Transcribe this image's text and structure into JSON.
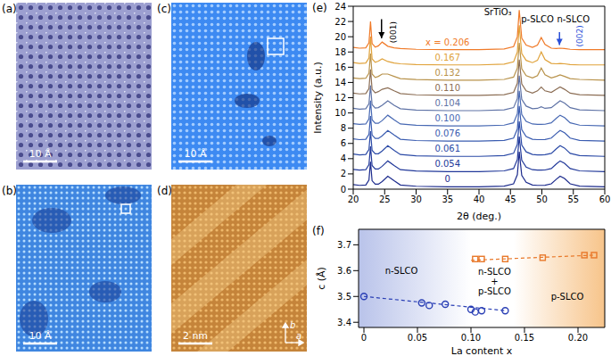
{
  "images": [
    {
      "label": "(a)",
      "scale_bar": "10 Å",
      "color": "#9c9fd0"
    },
    {
      "label": "(b)",
      "scale_bar": "10 Å",
      "color": "#3f86e0"
    },
    {
      "label": "(c)",
      "scale_bar": "10 Å",
      "color": "#3d8af2"
    },
    {
      "label": "(d)",
      "scale_bar": "2 nm",
      "color": "#c5843a",
      "axes": [
        "b",
        "a"
      ]
    }
  ],
  "chart_data": [
    {
      "type": "line",
      "panel": "(e)",
      "x_label": "2θ (deg.)",
      "y_label": "Intensity (a.u.)",
      "xlim": [
        20,
        60
      ],
      "ylim": [
        0,
        24
      ],
      "xticks": [
        20,
        25,
        30,
        35,
        40,
        45,
        50,
        55,
        60
      ],
      "yticks": [
        0,
        2,
        4,
        6,
        8,
        10,
        12,
        14,
        16,
        18,
        20,
        22,
        24
      ],
      "x": [
        20,
        21,
        22,
        22.5,
        22.75,
        23,
        23.5,
        24,
        24.6,
        25.5,
        26.5,
        27.5,
        30,
        35,
        40,
        44,
        45.5,
        46.1,
        46.4,
        46.8,
        47.5,
        48.5,
        49.3,
        49.9,
        50.5,
        51.5,
        52.3,
        52.9,
        53.6,
        54.5,
        56,
        60
      ],
      "series": [
        {
          "name": "0",
          "color": "#1b2a8c",
          "values": [
            0.6,
            0.5,
            0.55,
            1.2,
            3.6,
            1.1,
            0.65,
            0.65,
            1.0,
            1.7,
            1.1,
            0.55,
            0.38,
            0.3,
            0.3,
            0.4,
            0.7,
            1.9,
            4.9,
            1.8,
            0.9,
            0.55,
            0.5,
            0.5,
            0.52,
            0.7,
            1.3,
            1.7,
            1.4,
            0.7,
            0.4,
            0.3
          ]
        },
        {
          "name": "0.054",
          "color": "#22399a",
          "values": [
            2.6,
            2.5,
            2.55,
            3.2,
            5.6,
            3.1,
            2.65,
            2.65,
            3.0,
            3.7,
            3.1,
            2.55,
            2.38,
            2.3,
            2.3,
            2.4,
            2.7,
            3.9,
            6.9,
            3.8,
            2.9,
            2.55,
            2.5,
            2.5,
            2.52,
            2.7,
            3.3,
            3.7,
            3.4,
            2.7,
            2.4,
            2.3
          ]
        },
        {
          "name": "0.061",
          "color": "#2b4aa6",
          "values": [
            4.6,
            4.5,
            4.55,
            5.2,
            7.6,
            5.1,
            4.65,
            4.65,
            5.0,
            5.7,
            5.1,
            4.55,
            4.38,
            4.3,
            4.3,
            4.4,
            4.7,
            5.9,
            8.9,
            5.8,
            4.9,
            4.55,
            4.5,
            4.5,
            4.52,
            4.7,
            5.3,
            5.7,
            5.4,
            4.7,
            4.4,
            4.3
          ]
        },
        {
          "name": "0.076",
          "color": "#3a5cb0",
          "values": [
            6.6,
            6.5,
            6.55,
            7.2,
            9.6,
            7.1,
            6.65,
            6.65,
            7.0,
            7.7,
            7.1,
            6.55,
            6.38,
            6.3,
            6.3,
            6.4,
            6.7,
            7.9,
            10.9,
            7.8,
            6.9,
            6.55,
            6.5,
            6.5,
            6.52,
            6.7,
            7.3,
            7.7,
            7.4,
            6.7,
            6.4,
            6.3
          ]
        },
        {
          "name": "0.100",
          "color": "#4869b3",
          "values": [
            8.6,
            8.5,
            8.55,
            9.2,
            11.6,
            9.1,
            8.65,
            8.65,
            9.0,
            9.7,
            9.1,
            8.55,
            8.38,
            8.3,
            8.3,
            8.4,
            8.7,
            9.9,
            12.9,
            9.8,
            8.9,
            8.55,
            8.5,
            8.5,
            8.52,
            8.7,
            9.3,
            9.7,
            9.4,
            8.7,
            8.4,
            8.3
          ]
        },
        {
          "name": "0.104",
          "color": "#5f73a6",
          "values": [
            10.6,
            10.5,
            10.55,
            11.2,
            13.6,
            11.1,
            10.65,
            10.7,
            11.0,
            11.6,
            11.0,
            10.55,
            10.38,
            10.3,
            10.3,
            10.4,
            10.7,
            11.9,
            14.9,
            11.8,
            10.9,
            10.55,
            10.6,
            10.8,
            10.6,
            10.7,
            11.2,
            11.6,
            11.3,
            10.7,
            10.4,
            10.3
          ]
        },
        {
          "name": "0.110",
          "color": "#8c6e55",
          "values": [
            12.6,
            12.5,
            12.55,
            13.2,
            15.7,
            13.1,
            12.65,
            12.8,
            13.1,
            13.3,
            12.9,
            12.55,
            12.38,
            12.3,
            12.3,
            12.4,
            12.7,
            13.9,
            17.0,
            13.8,
            12.9,
            12.6,
            12.9,
            13.4,
            12.9,
            12.7,
            13.1,
            13.4,
            13.1,
            12.6,
            12.4,
            12.3
          ]
        },
        {
          "name": "0.132",
          "color": "#b8924a",
          "values": [
            14.6,
            14.5,
            14.55,
            15.2,
            17.8,
            15.1,
            14.65,
            14.8,
            15.1,
            15.1,
            14.8,
            14.5,
            14.38,
            14.3,
            14.3,
            14.4,
            14.7,
            15.9,
            19.2,
            15.8,
            14.9,
            14.6,
            14.9,
            15.9,
            15.0,
            14.6,
            14.8,
            15.0,
            14.8,
            14.5,
            14.4,
            14.3
          ]
        },
        {
          "name": "0.167",
          "color": "#e0a23a",
          "values": [
            16.6,
            16.5,
            16.55,
            17.2,
            20.0,
            17.1,
            16.65,
            16.8,
            17.1,
            16.75,
            16.55,
            16.45,
            16.35,
            16.3,
            16.3,
            16.4,
            16.7,
            18.0,
            21.5,
            17.8,
            16.9,
            16.6,
            16.9,
            18.0,
            17.0,
            16.5,
            16.45,
            16.5,
            16.45,
            16.35,
            16.3,
            16.3
          ]
        },
        {
          "name": "x = 0.206",
          "color": "#f07a28",
          "values": [
            18.6,
            18.5,
            18.55,
            19.2,
            22.0,
            19.1,
            18.65,
            18.8,
            19.3,
            18.75,
            18.55,
            18.45,
            18.35,
            18.3,
            18.3,
            18.4,
            18.7,
            20.0,
            23.5,
            19.8,
            18.9,
            18.6,
            18.9,
            19.9,
            19.0,
            18.5,
            18.45,
            18.5,
            18.45,
            18.35,
            18.3,
            18.3
          ]
        }
      ],
      "annotations": [
        {
          "text": "SrTiO₃",
          "x": 43,
          "y": 23.2,
          "color": "#000000"
        },
        {
          "text": "p-SLCO",
          "x": 49.3,
          "y": 22.3,
          "color": "#000000"
        },
        {
          "text": "n-SLCO",
          "x": 55.0,
          "y": 22.3,
          "color": "#000000"
        },
        {
          "text": "(001)",
          "x": 26.4,
          "y": 20.6,
          "color": "#000000"
        },
        {
          "text": "(002)",
          "x": 56.0,
          "y": 20.1,
          "color": "#2a4fd8"
        }
      ],
      "arrows": [
        {
          "x": 24.5,
          "from": 22.3,
          "to": 19.8,
          "color": "#000000"
        },
        {
          "x": 52.8,
          "from": 20.6,
          "to": 18.9,
          "color": "#2a4fd8"
        }
      ]
    },
    {
      "type": "scatter",
      "panel": "(f)",
      "x_label": "La content x",
      "y_label": "c (Å)",
      "xlim": [
        -0.005,
        0.225
      ],
      "ylim": [
        3.38,
        3.76
      ],
      "xticks": [
        0,
        0.05,
        {
          "value": 0.1,
          "label": "0.10"
        },
        0.15,
        {
          "value": 0.2,
          "label": "0.20"
        }
      ],
      "yticks": [
        3.4,
        3.5,
        3.6,
        3.7
      ],
      "regions": [
        {
          "from": -0.005,
          "to": 0.1,
          "color": "#b9c3ea"
        },
        {
          "from": 0.14,
          "to": 0.225,
          "color": "#f7c48a"
        }
      ],
      "series": [
        {
          "color": "#2a3fb5",
          "marker": "circle",
          "x": [
            0,
            0.054,
            0.061,
            0.076,
            0.1,
            0.104,
            0.11,
            0.132
          ],
          "values": [
            3.5,
            3.475,
            3.465,
            3.47,
            3.45,
            3.44,
            3.445,
            3.445
          ],
          "fit": {
            "x": [
              0,
              0.132
            ],
            "values": [
              3.5,
              3.445
            ],
            "line_style": "dashed"
          }
        },
        {
          "color": "#e8782a",
          "marker": "square",
          "x": [
            0.104,
            0.11,
            0.132,
            0.167,
            0.206,
            0.215
          ],
          "values": [
            3.645,
            3.645,
            3.645,
            3.65,
            3.66,
            3.66
          ],
          "fit": {
            "x": [
              0.1,
              0.215
            ],
            "values": [
              3.64,
              3.66
            ],
            "line_style": "dashed"
          }
        }
      ],
      "annotations": [
        {
          "text": "n-SLCO",
          "x": 0.035,
          "y": 3.6,
          "color": "#000000"
        },
        {
          "text": [
            "n-SLCO",
            "+",
            "p-SLCO"
          ],
          "x": 0.122,
          "y": 3.56,
          "color": "#000000"
        },
        {
          "text": "p-SLCO",
          "x": 0.19,
          "y": 3.5,
          "color": "#000000"
        }
      ]
    }
  ]
}
